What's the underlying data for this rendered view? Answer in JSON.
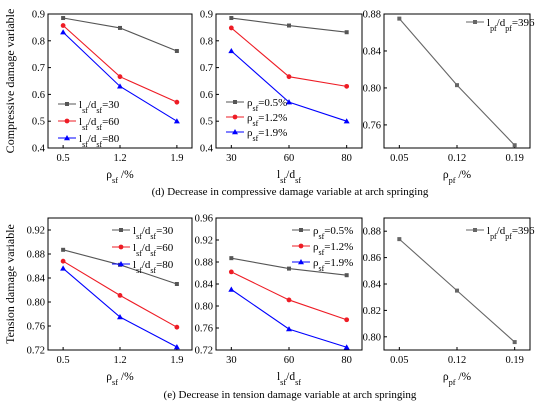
{
  "captions": {
    "d": "(d) Decrease in compressive damage variable at arch springing",
    "e": "(e) Decrease in tension damage variable at arch springing"
  },
  "colors": {
    "black": "#555555",
    "red": "#ee1c25",
    "blue": "#0000ff",
    "gray": "#666666"
  },
  "chart_data": [
    {
      "type": "line",
      "id": "d-left",
      "ylabel": "Compressive damage variable",
      "xlabel": "ρsf /%",
      "categories": [
        "0.5",
        "1.2",
        "1.9"
      ],
      "ylim": [
        0.4,
        0.9
      ],
      "yticks": [
        0.4,
        0.5,
        0.6,
        0.7,
        0.8,
        0.9
      ],
      "legend_position": "bottom-left",
      "series": [
        {
          "name": "lsf/dsf=30",
          "values": [
            0.885,
            0.848,
            0.762
          ],
          "color": "#555555",
          "marker": "square"
        },
        {
          "name": "lsf/dsf=60",
          "values": [
            0.857,
            0.666,
            0.571
          ],
          "color": "#ee1c25",
          "marker": "circle"
        },
        {
          "name": "lsf/dsf=80",
          "values": [
            0.832,
            0.63,
            0.5
          ],
          "color": "#0000ff",
          "marker": "triangle"
        }
      ]
    },
    {
      "type": "line",
      "id": "d-mid",
      "ylabel": "",
      "xlabel": "lsf/dsf",
      "categories": [
        "30",
        "60",
        "80"
      ],
      "ylim": [
        0.4,
        0.9
      ],
      "yticks": [
        0.4,
        0.5,
        0.6,
        0.7,
        0.8,
        0.9
      ],
      "legend_position": "bottom-left",
      "series": [
        {
          "name": "ρsf=0.5%",
          "values": [
            0.885,
            0.857,
            0.832
          ],
          "color": "#555555",
          "marker": "square"
        },
        {
          "name": "ρsf=1.2%",
          "values": [
            0.848,
            0.666,
            0.63
          ],
          "color": "#ee1c25",
          "marker": "circle"
        },
        {
          "name": "ρsf=1.9%",
          "values": [
            0.762,
            0.571,
            0.5
          ],
          "color": "#0000ff",
          "marker": "triangle"
        }
      ]
    },
    {
      "type": "line",
      "id": "d-right",
      "ylabel": "",
      "xlabel": "ρpf /%",
      "categories": [
        "0.05",
        "0.12",
        "0.19"
      ],
      "ylim": [
        0.735,
        0.88
      ],
      "yticks": [
        0.76,
        0.8,
        0.84,
        0.88
      ],
      "legend_position": "top-right",
      "series": [
        {
          "name": "lpf/dpf=396",
          "values": [
            0.875,
            0.803,
            0.738
          ],
          "color": "#666666",
          "marker": "square"
        }
      ]
    },
    {
      "type": "line",
      "id": "e-left",
      "ylabel": "Tension damage variable",
      "xlabel": "ρsf /%",
      "categories": [
        "0.5",
        "1.2",
        "1.9"
      ],
      "ylim": [
        0.72,
        0.94
      ],
      "yticks": [
        0.72,
        0.76,
        0.8,
        0.84,
        0.88,
        0.92
      ],
      "legend_position": "top-right",
      "series": [
        {
          "name": "lsf/dsf=30",
          "values": [
            0.887,
            0.862,
            0.83
          ],
          "color": "#555555",
          "marker": "square"
        },
        {
          "name": "lsf/dsf=60",
          "values": [
            0.868,
            0.811,
            0.758
          ],
          "color": "#ee1c25",
          "marker": "circle"
        },
        {
          "name": "lsf/dsf=80",
          "values": [
            0.856,
            0.775,
            0.725
          ],
          "color": "#0000ff",
          "marker": "triangle"
        }
      ]
    },
    {
      "type": "line",
      "id": "e-mid",
      "ylabel": "",
      "xlabel": "lsf/dsf",
      "categories": [
        "30",
        "60",
        "80"
      ],
      "ylim": [
        0.72,
        0.96
      ],
      "yticks": [
        0.72,
        0.76,
        0.8,
        0.84,
        0.88,
        0.92,
        0.96
      ],
      "legend_position": "top-right",
      "series": [
        {
          "name": "ρsf=0.5%",
          "values": [
            0.887,
            0.868,
            0.856
          ],
          "color": "#555555",
          "marker": "square"
        },
        {
          "name": "ρsf=1.2%",
          "values": [
            0.862,
            0.811,
            0.775
          ],
          "color": "#ee1c25",
          "marker": "circle"
        },
        {
          "name": "ρsf=1.9%",
          "values": [
            0.83,
            0.758,
            0.725
          ],
          "color": "#0000ff",
          "marker": "triangle"
        }
      ]
    },
    {
      "type": "line",
      "id": "e-right",
      "ylabel": "",
      "xlabel": "ρpf /%",
      "categories": [
        "0.05",
        "0.12",
        "0.19"
      ],
      "ylim": [
        0.79,
        0.89
      ],
      "yticks": [
        0.8,
        0.82,
        0.84,
        0.86,
        0.88
      ],
      "legend_position": "top-right",
      "series": [
        {
          "name": "lpf/dpf=396",
          "values": [
            0.874,
            0.835,
            0.796
          ],
          "color": "#666666",
          "marker": "square"
        }
      ]
    }
  ]
}
